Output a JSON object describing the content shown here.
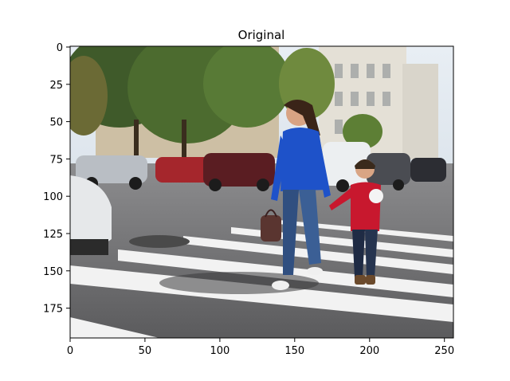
{
  "figure": {
    "title": "Original",
    "image_alt": "Woman in blue sweater holding a boy's hand crossing a zebra crosswalk on a city street with parked cars and trees",
    "x_ticks": [
      "0",
      "50",
      "100",
      "150",
      "200",
      "250"
    ],
    "y_ticks": [
      "0",
      "25",
      "50",
      "75",
      "100",
      "125",
      "150",
      "175"
    ],
    "x_range": [
      0,
      256
    ],
    "y_range": [
      0,
      196
    ]
  }
}
